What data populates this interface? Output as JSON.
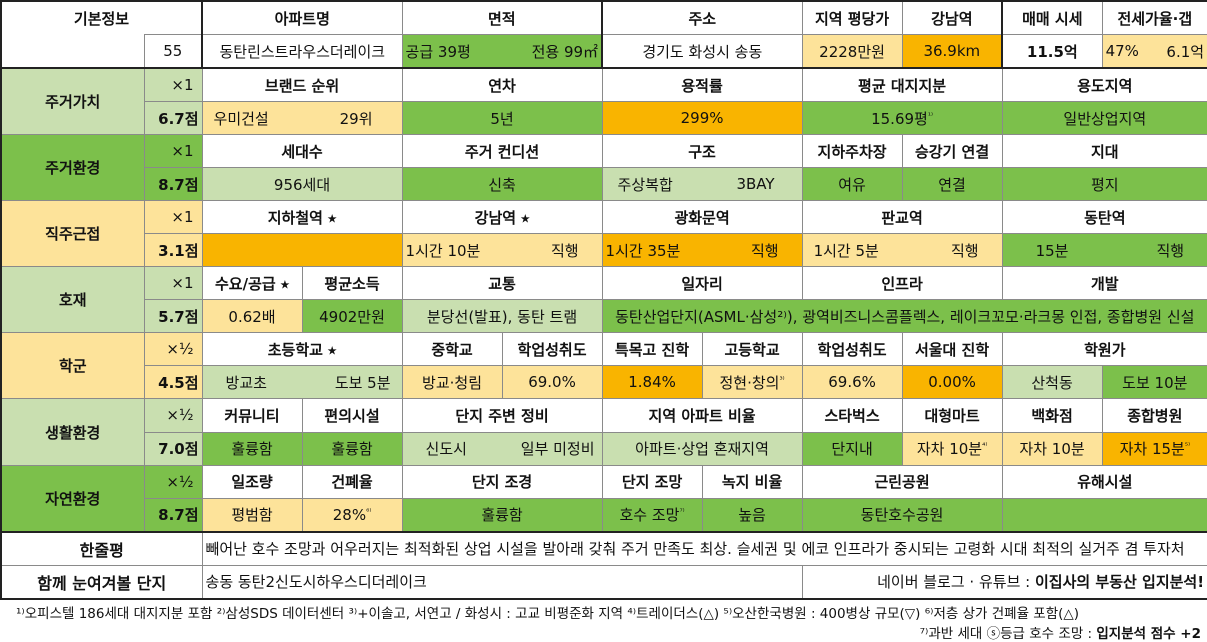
{
  "basic": {
    "label": "기본정보",
    "number": "55",
    "headers": [
      "아파트명",
      "면적",
      "주소",
      "지역 평당가",
      "강남역",
      "매매 시세",
      "전세가율·갭"
    ],
    "apt_name": "동탄린스트라우스더레이크",
    "area_supply": "공급 39평",
    "area_exclusive": "전용 99㎡",
    "address": "경기도 화성시 송동",
    "region_price": "2228만원",
    "gangnam_distance": "36.9km",
    "sale_price": "11.5억",
    "jeonse_ratio": "47%",
    "gap": "6.1억"
  },
  "housing_value": {
    "label": "주거가치",
    "multiplier": "×1",
    "score": "6.7점",
    "headers": [
      "브랜드 순위",
      "연차",
      "용적률",
      "평균 대지지분",
      "용도지역"
    ],
    "brand": "우미건설",
    "brand_rank": "29위",
    "age": "5년",
    "far": "299%",
    "land_share": "15.69평",
    "land_share_note": "¹⁾",
    "zoning": "일반상업지역"
  },
  "environment": {
    "label": "주거환경",
    "multiplier": "×1",
    "score": "8.7점",
    "headers": [
      "세대수",
      "주거 컨디션",
      "구조",
      "지하주차장",
      "승강기 연결",
      "지대"
    ],
    "households": "956세대",
    "condition": "신축",
    "structure_a": "주상복합",
    "structure_b": "3BAY",
    "parking": "여유",
    "elevator": "연결",
    "terrain": "평지"
  },
  "commute": {
    "label": "직주근접",
    "multiplier": "×1",
    "score": "3.1점",
    "headers": [
      "지하철역 ⭑",
      "강남역 ⭑",
      "광화문역",
      "판교역",
      "동탄역"
    ],
    "subway": "",
    "gangnam_time": "1시간 10분",
    "gangnam_mode": "직행",
    "gwanghwamun_time": "1시간 35분",
    "gwanghwamun_mode": "직행",
    "pangyo_time": "1시간 5분",
    "pangyo_mode": "직행",
    "dongtan_time": "15분",
    "dongtan_mode": "직행"
  },
  "development": {
    "label": "호재",
    "multiplier": "×1",
    "score": "5.7점",
    "headers": [
      "수요/공급 ⭑",
      "평균소득",
      "교통",
      "일자리",
      "인프라",
      "개발"
    ],
    "supply_demand": "0.62배",
    "income": "4902만원",
    "transport": "분당선(발표), 동탄 트램",
    "jobs_infra_dev": "동탄산업단지(ASML·삼성²⁾), 광역비즈니스콤플렉스, 레이크꼬모·라크몽 인접, 종합병원 신설"
  },
  "school": {
    "label": "학군",
    "multiplier": "×½",
    "score": "4.5점",
    "headers": [
      "초등학교 ⭑",
      "중학교",
      "학업성취도",
      "특목고 진학",
      "고등학교",
      "학업성취도",
      "서울대 진학",
      "학원가"
    ],
    "elementary": "방교초",
    "elementary_walk": "도보 5분",
    "middle": "방교·청림",
    "middle_achievement": "69.0%",
    "special_hs_rate": "1.84%",
    "high": "정현·창의",
    "high_note": "³⁾",
    "high_achievement": "69.6%",
    "snu_rate": "0.00%",
    "academy": "산척동",
    "academy_walk": "도보 10분"
  },
  "living": {
    "label": "생활환경",
    "multiplier": "×½",
    "score": "7.0점",
    "headers": [
      "커뮤니티",
      "편의시설",
      "단지 주변 정비",
      "지역 아파트 비율",
      "스타벅스",
      "대형마트",
      "백화점",
      "종합병원"
    ],
    "community": "훌륭함",
    "convenience": "훌륭함",
    "surroundings_a": "신도시",
    "surroundings_b": "일부 미정비",
    "apt_ratio": "아파트·상업 혼재지역",
    "starbucks": "단지내",
    "mart": "자차 10분",
    "mart_note": "⁴⁾",
    "department": "자차 10분",
    "hospital": "자차 15분",
    "hospital_note": "⁵⁾"
  },
  "nature": {
    "label": "자연환경",
    "multiplier": "×½",
    "score": "8.7점",
    "headers": [
      "일조량",
      "건폐율",
      "단지 조경",
      "단지 조망",
      "녹지 비율",
      "근린공원",
      "유해시설"
    ],
    "sunlight": "평범함",
    "bcr": "28%",
    "bcr_note": "⁶⁾",
    "landscape": "훌륭함",
    "view": "호수 조망",
    "view_note": "⁷⁾",
    "green_ratio": "높음",
    "park": "동탄호수공원",
    "hazard": ""
  },
  "summary": {
    "label": "한줄평",
    "text": "빼어난 호수 조망과 어우러지는 최적화된 상업 시설을 발아래 갖춰 주거 만족도 최상. 슬세권 및 에코 인프라가 중시되는 고령화 시대 최적의 실거주 겸 투자처"
  },
  "compare": {
    "label": "함께 눈여겨볼 단지",
    "text": "송동 동탄2신도시하우스디더레이크",
    "source_prefix": "네이버 블로그 · 유튜브 : ",
    "source_name": "이집사의 부동산 입지분석!"
  },
  "notes": {
    "line1": "¹⁾오피스텔 186세대 대지지분 포함 ²⁾삼성SDS 데이터센터 ³⁾+이솔고, 서연고 / 화성시 : 고교 비평준화 지역 ⁴⁾트레이더스(△) ⁵⁾오산한국병원 : 400병상 규모(▽) ⁶⁾저층 상가 건폐율 포함(△)",
    "line2_prefix": "⁷⁾과반 세대 ⓢ등급 호수 조망 : ",
    "line2_bold": "입지분석 점수 +2"
  },
  "colors": {
    "green": "#7cc04b",
    "light_green": "#c9dfb0",
    "yellow": "#fde39a",
    "orange": "#f9b400",
    "pale_green": "#e2f0d0"
  }
}
